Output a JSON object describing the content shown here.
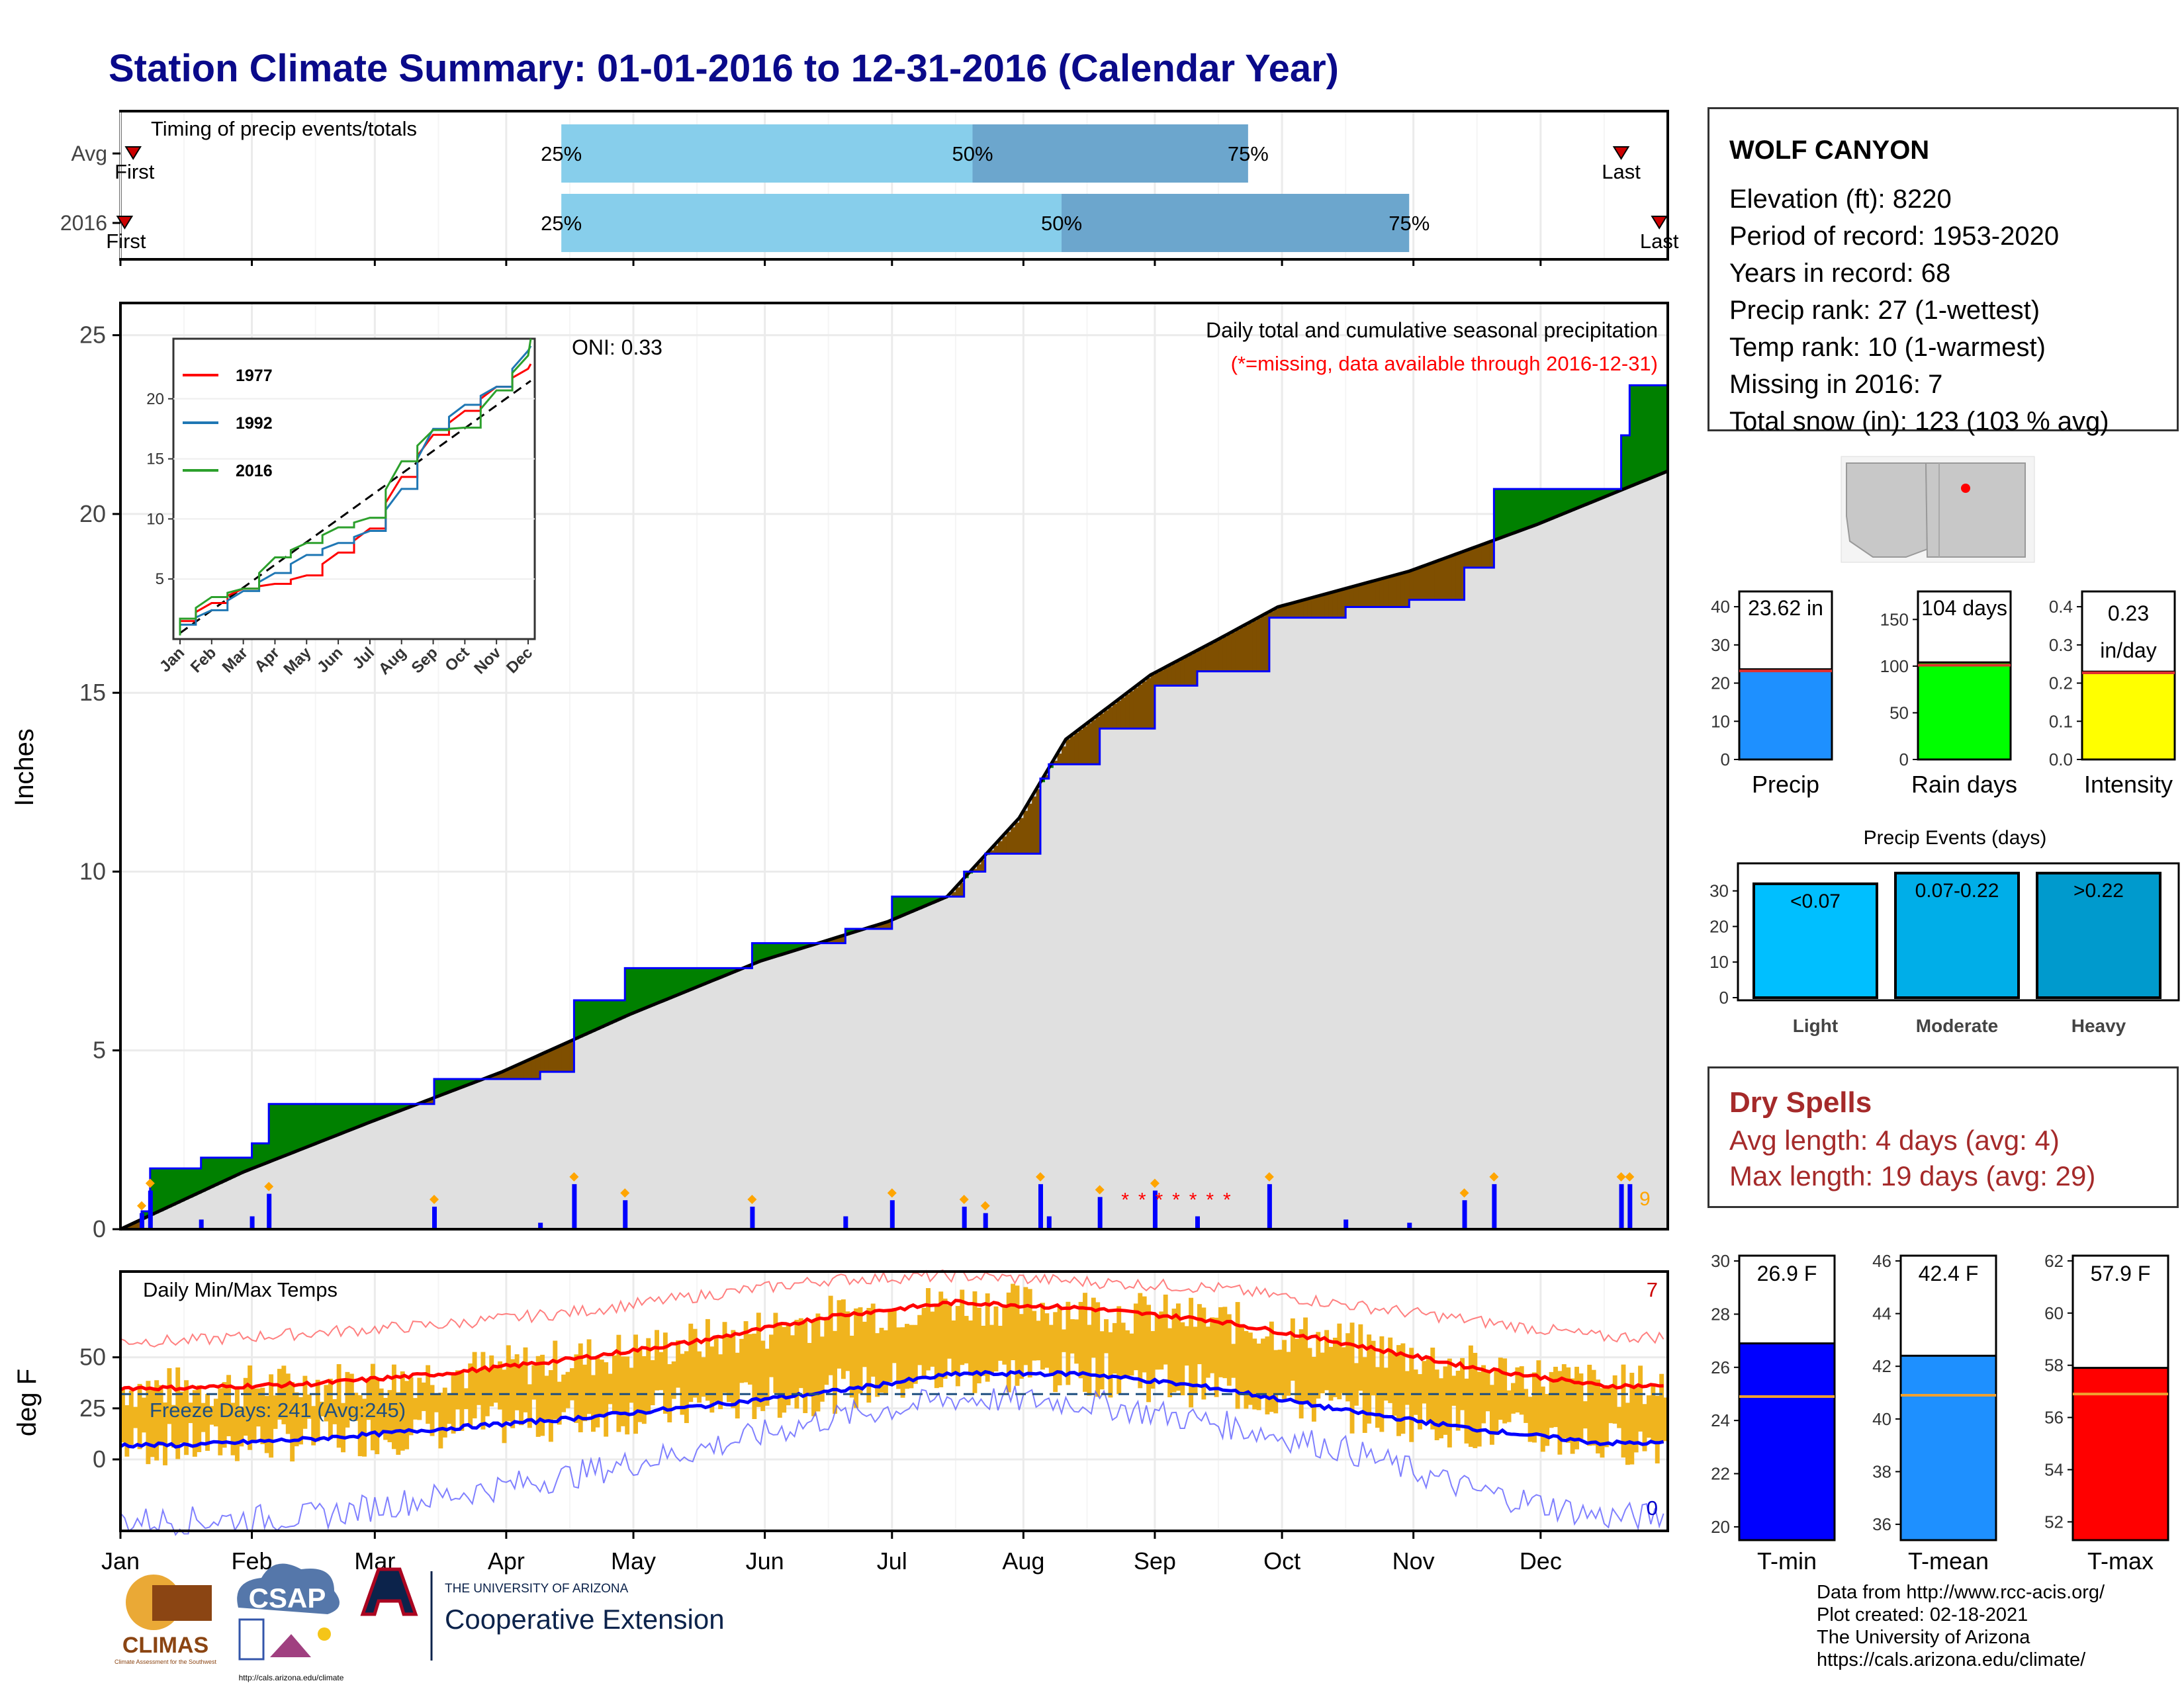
{
  "title": "Station Climate Summary: 01-01-2016 to 12-31-2016 (Calendar Year)",
  "timing_panel": {
    "label": "Timing of precip events/totals",
    "rows": [
      {
        "name": "Avg",
        "first": "First",
        "last": "Last",
        "p25": "25%",
        "p50": "50%",
        "p75": "75%",
        "first_doy": 4,
        "p25_doy": 105,
        "p50_doy": 202,
        "p75_doy": 267,
        "last_doy": 355
      },
      {
        "name": "2016",
        "first": "First",
        "last": "Last",
        "p25": "25%",
        "p50": "50%",
        "p75": "75%",
        "first_doy": 2,
        "p25_doy": 105,
        "p50_doy": 223,
        "p75_doy": 305,
        "last_doy": 364
      }
    ]
  },
  "precip_panel": {
    "y_label": "Inches",
    "y_ticks": [
      "0",
      "5",
      "10",
      "15",
      "20",
      "25"
    ],
    "oni": "ONI: 0.33",
    "note1": "Daily total and cumulative seasonal precipitation",
    "note2": "(*=missing, data available through 2016-12-31)",
    "count_label": "9",
    "colors": {
      "above": "#008000",
      "below": "#7f4f00",
      "fill": "#e0e0e0",
      "bars": "#0000ff",
      "line2016": "#0000ff",
      "missing": "#ff0000",
      "events": "#ffa500"
    }
  },
  "inset": {
    "y_ticks": [
      "5",
      "10",
      "15",
      "20"
    ],
    "x_ticks": [
      "Jan",
      "Feb",
      "Mar",
      "Apr",
      "May",
      "Jun",
      "Jul",
      "Aug",
      "Sep",
      "Oct",
      "Nov",
      "Dec"
    ],
    "legend": [
      {
        "name": "1977",
        "color": "#ff0000"
      },
      {
        "name": "1992",
        "color": "#1f77b4"
      },
      {
        "name": "2016",
        "color": "#2ca02c"
      }
    ]
  },
  "temp_panel": {
    "y_label": "deg F",
    "label": "Daily Min/Max Temps",
    "freeze": "Freeze Days: 241 (Avg:245)",
    "y_ticks": [
      "0",
      "25",
      "50"
    ],
    "max_count": "7",
    "min_count": "0",
    "colors": {
      "bars": "#f0b41e",
      "max_avg": "#ff0000",
      "min_avg": "#0000ff"
    }
  },
  "months": [
    "Jan",
    "Feb",
    "Mar",
    "Apr",
    "May",
    "Jun",
    "Jul",
    "Aug",
    "Sep",
    "Oct",
    "Nov",
    "Dec"
  ],
  "station": {
    "name": "WOLF CANYON",
    "lines": [
      "Elevation (ft): 8220",
      "Period of record: 1953-2020",
      "Years in record: 68",
      "Precip rank: 27 (1-wettest)",
      "Temp rank: 10 (1-warmest)",
      "Missing in 2016: 7",
      "Total snow (in): 123 (103 % avg)"
    ]
  },
  "precip_bars": [
    {
      "label": "Precip",
      "value_label": "23.62 in",
      "value": 23.62,
      "avg": 23.2,
      "ymax": 44,
      "ticks": [
        "0",
        "10",
        "20",
        "30",
        "40"
      ],
      "tick_vals": [
        0,
        10,
        20,
        30,
        40
      ],
      "color": "#1e90ff"
    },
    {
      "label": "Rain days",
      "value_label": "104 days",
      "value": 104,
      "avg": 101,
      "ymax": 180,
      "ticks": [
        "0",
        "50",
        "100",
        "150"
      ],
      "tick_vals": [
        0,
        50,
        100,
        150
      ],
      "color": "#00ff00"
    },
    {
      "label": "Intensity",
      "value_label": "0.23\nin/day",
      "value_text1": "0.23",
      "value_text2": "in/day",
      "value": 0.23,
      "avg": 0.227,
      "ymax": 0.44,
      "ticks": [
        "0.0",
        "0.1",
        "0.2",
        "0.3",
        "0.4"
      ],
      "tick_vals": [
        0,
        0.1,
        0.2,
        0.3,
        0.4
      ],
      "color": "#ffff00"
    }
  ],
  "events": {
    "title": "Precip Events (days)",
    "y_ticks": [
      "0",
      "10",
      "20",
      "30"
    ],
    "bars": [
      {
        "label": "Light",
        "range": "<0.07",
        "value": 32,
        "color": "#00bfff"
      },
      {
        "label": "Moderate",
        "range": "0.07-0.22",
        "value": 35,
        "color": "#00aee8"
      },
      {
        "label": "Heavy",
        "range": ">0.22",
        "value": 35,
        "color": "#009acd"
      }
    ]
  },
  "dry_spells": {
    "title": "Dry Spells",
    "avg_length": "Avg length: 4 days (avg: 4)",
    "max_length": "Max length: 19 days (avg: 29)"
  },
  "temp_bars": [
    {
      "label": "T-min",
      "value_label": "26.9 F",
      "value": 26.9,
      "avg": 24.9,
      "min": 19.5,
      "max": 30.2,
      "ticks": [
        "20",
        "22",
        "24",
        "26",
        "28",
        "30"
      ],
      "tick_vals": [
        20,
        22,
        24,
        26,
        28,
        30
      ],
      "color": "#0000ff"
    },
    {
      "label": "T-mean",
      "value_label": "42.4 F",
      "value": 42.4,
      "avg": 40.9,
      "min": 35.4,
      "max": 46.2,
      "ticks": [
        "36",
        "38",
        "40",
        "42",
        "44",
        "46"
      ],
      "tick_vals": [
        36,
        38,
        40,
        42,
        44,
        46
      ],
      "color": "#1e90ff"
    },
    {
      "label": "T-max",
      "value_label": "57.9 F",
      "value": 57.9,
      "avg": 56.9,
      "min": 51.3,
      "max": 62.2,
      "ticks": [
        "52",
        "54",
        "56",
        "58",
        "60",
        "62"
      ],
      "tick_vals": [
        52,
        54,
        56,
        58,
        60,
        62
      ],
      "color": "#ff0000"
    }
  ],
  "credits": [
    "Data from http://www.rcc-acis.org/",
    "Plot created: 02-18-2021",
    "The University of Arizona",
    "https://cals.arizona.edu/climate/"
  ],
  "logos": {
    "climas": "CLIMAS",
    "climas_sub": "Climate Assessment for the Southwest",
    "csap": "CSAP",
    "csap_url": "http://cals.arizona.edu/climate",
    "ua_small": "THE UNIVERSITY OF ARIZONA",
    "ua_big": "Cooperative Extension"
  },
  "chart_data": [
    {
      "type": "area",
      "title": "Daily total and cumulative seasonal precipitation",
      "ylabel": "Inches",
      "ylim": [
        0,
        25.9
      ],
      "x_months": [
        "Jan",
        "Feb",
        "Mar",
        "Apr",
        "May",
        "Jun",
        "Jul",
        "Aug",
        "Sep",
        "Oct",
        "Nov",
        "Dec"
      ],
      "series": [
        {
          "name": "2016",
          "x_doy": [
            1,
            6,
            8,
            20,
            32,
            36,
            60,
            75,
            100,
            108,
            120,
            150,
            172,
            183,
            190,
            200,
            205,
            218,
            220,
            232,
            245,
            255,
            272,
            290,
            305,
            318,
            325,
            345,
            355,
            357,
            366
          ],
          "values": [
            0,
            0.5,
            1.7,
            2.0,
            2.4,
            3.5,
            3.5,
            4.2,
            4.4,
            6.4,
            7.3,
            8.0,
            8.4,
            9.3,
            9.3,
            10.0,
            10.5,
            12.6,
            13.0,
            14.0,
            15.2,
            15.6,
            17.1,
            17.4,
            17.6,
            18.5,
            20.7,
            20.7,
            22.2,
            23.6,
            23.6
          ]
        },
        {
          "name": "Avg",
          "x_doy": [
            1,
            30,
            60,
            91,
            121,
            152,
            182,
            196,
            213,
            224,
            244,
            260,
            274,
            305,
            335,
            366
          ],
          "values": [
            0,
            1.6,
            3.0,
            4.4,
            6.0,
            7.5,
            8.6,
            9.3,
            11.5,
            13.7,
            15.5,
            16.5,
            17.4,
            18.4,
            19.7,
            21.2
          ]
        }
      ]
    },
    {
      "type": "line",
      "title": "",
      "xlabel": "",
      "ylabel": "",
      "ylim": [
        0,
        25
      ],
      "x": [
        "Jan",
        "Feb",
        "Mar",
        "Apr",
        "May",
        "Jun",
        "Jul",
        "Aug",
        "Sep",
        "Oct",
        "Nov",
        "Dec"
      ],
      "series": [
        {
          "name": "1977",
          "values": [
            1.5,
            3.0,
            4.2,
            4.6,
            5.3,
            7.2,
            9.2,
            13.5,
            17.0,
            19.0,
            21.0,
            22.5
          ]
        },
        {
          "name": "1992",
          "values": [
            1.2,
            2.4,
            4.0,
            5.5,
            7.0,
            8.0,
            9.0,
            12.5,
            17.5,
            19.5,
            21.0,
            24.0
          ]
        },
        {
          "name": "2016",
          "values": [
            1.7,
            3.5,
            4.2,
            6.8,
            8.0,
            9.3,
            10.1,
            14.8,
            17.4,
            17.6,
            20.7,
            23.6
          ]
        }
      ]
    },
    {
      "type": "line",
      "title": "Daily Min/Max Temps",
      "ylabel": "deg F",
      "ylim": [
        -35,
        92
      ],
      "x_months": [
        "Jan",
        "Feb",
        "Mar",
        "Apr",
        "May",
        "Jun",
        "Jul",
        "Aug",
        "Sep",
        "Oct",
        "Nov",
        "Dec"
      ],
      "series": [
        {
          "name": "Avg Max",
          "values": [
            35,
            37,
            42,
            49,
            58,
            70,
            77,
            74,
            68,
            57,
            45,
            36
          ]
        },
        {
          "name": "Avg Min",
          "values": [
            7,
            10,
            15,
            20,
            26,
            33,
            42,
            42,
            35,
            24,
            15,
            8
          ]
        },
        {
          "name": "Record Max",
          "values": [
            58,
            62,
            66,
            72,
            80,
            88,
            90,
            87,
            84,
            76,
            68,
            60
          ]
        },
        {
          "name": "Record Min",
          "values": [
            -30,
            -28,
            -18,
            -8,
            5,
            20,
            30,
            28,
            18,
            5,
            -15,
            -28
          ]
        }
      ]
    },
    {
      "type": "bar",
      "title": "",
      "categories": [
        "Light",
        "Moderate",
        "Heavy"
      ],
      "values": [
        32,
        35,
        35
      ]
    }
  ]
}
